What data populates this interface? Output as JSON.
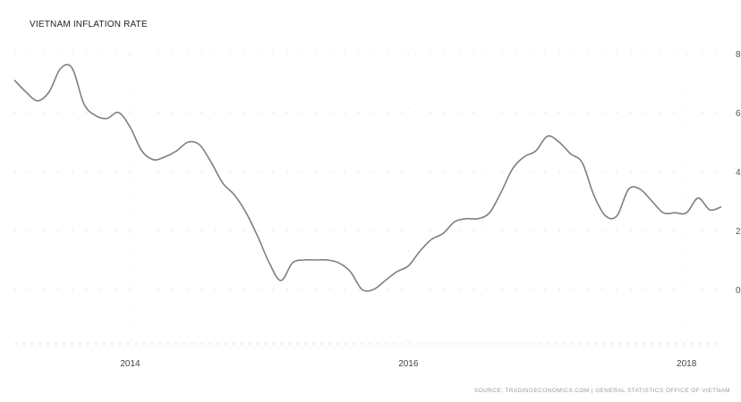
{
  "chart_data": {
    "type": "line",
    "title": "VIETNAM INFLATION RATE",
    "xlabel": "",
    "ylabel": "",
    "source": "SOURCE: TRADINGECONOMICS.COM | GENERAL STATISTICS OFFICE OF VIETNAM",
    "x_ticks": [
      "2014",
      "2016",
      "2018"
    ],
    "y_ticks": [
      "0",
      "2",
      "4",
      "6",
      "8"
    ],
    "xlim": [
      "2013-03",
      "2018-04"
    ],
    "ylim": [
      -2,
      8
    ],
    "grid": true,
    "line_color": "#7f7f7f",
    "series": [
      {
        "x": [
          "2013-03",
          "2013-04",
          "2013-05",
          "2013-06",
          "2013-07",
          "2013-08",
          "2013-09",
          "2013-10",
          "2013-11",
          "2013-12",
          "2014-01",
          "2014-02",
          "2014-03",
          "2014-04",
          "2014-05",
          "2014-06",
          "2014-07",
          "2014-08",
          "2014-09",
          "2014-10",
          "2014-11",
          "2014-12",
          "2015-01",
          "2015-02",
          "2015-03",
          "2015-04",
          "2015-05",
          "2015-06",
          "2015-07",
          "2015-08",
          "2015-09",
          "2015-10",
          "2015-11",
          "2015-12",
          "2016-01",
          "2016-02",
          "2016-03",
          "2016-04",
          "2016-05",
          "2016-06",
          "2016-07",
          "2016-08",
          "2016-09",
          "2016-10",
          "2016-11",
          "2016-12",
          "2017-01",
          "2017-02",
          "2017-03",
          "2017-04",
          "2017-05",
          "2017-06",
          "2017-07",
          "2017-08",
          "2017-09",
          "2017-10",
          "2017-11",
          "2017-12",
          "2018-01",
          "2018-02",
          "2018-03",
          "2018-04"
        ],
        "values": [
          7.1,
          6.7,
          6.4,
          6.7,
          7.5,
          7.5,
          6.3,
          5.9,
          5.8,
          6.0,
          5.5,
          4.7,
          4.4,
          4.5,
          4.7,
          5.0,
          4.9,
          4.3,
          3.6,
          3.2,
          2.6,
          1.8,
          0.9,
          0.3,
          0.9,
          1.0,
          1.0,
          1.0,
          0.9,
          0.6,
          0.0,
          0.0,
          0.3,
          0.6,
          0.8,
          1.3,
          1.7,
          1.9,
          2.3,
          2.4,
          2.4,
          2.6,
          3.3,
          4.1,
          4.5,
          4.7,
          5.2,
          5.0,
          4.6,
          4.3,
          3.2,
          2.5,
          2.5,
          3.4,
          3.4,
          3.0,
          2.6,
          2.6,
          2.6,
          3.1,
          2.7,
          2.8
        ]
      }
    ]
  }
}
